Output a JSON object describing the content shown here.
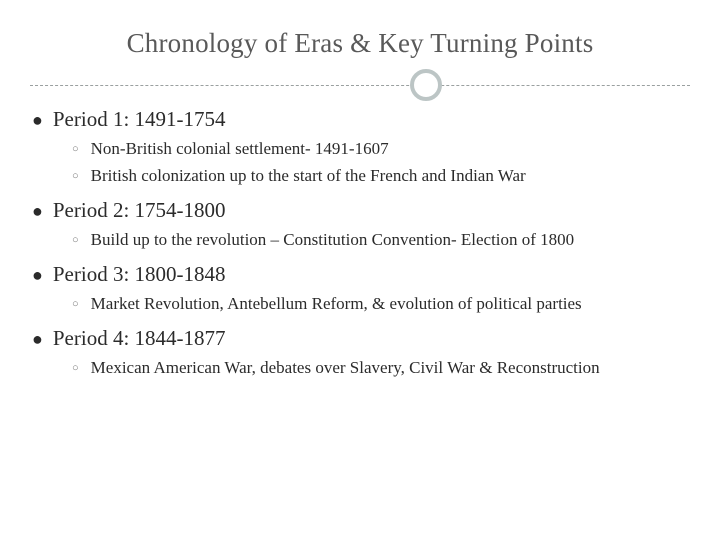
{
  "slide": {
    "title": "Chronology of Eras & Key Turning Points",
    "ring_color": "#bcc5c5",
    "dash_color": "#9aa0a0",
    "title_color": "#595959",
    "text_color": "#2b2b2b",
    "background": "#ffffff",
    "bullet_main": "●",
    "bullet_sub": "○",
    "periods": [
      {
        "label": "Period 1: 1491-1754",
        "items": [
          "Non-British colonial settlement- 1491-1607",
          "British colonization up to the start of the French and Indian War"
        ]
      },
      {
        "label": "Period 2: 1754-1800",
        "items": [
          "Build up to the revolution – Constitution Convention- Election of 1800"
        ]
      },
      {
        "label": "Period 3: 1800-1848",
        "items": [
          "Market Revolution, Antebellum Reform, & evolution of political parties"
        ]
      },
      {
        "label": "Period 4: 1844-1877",
        "items": [
          "Mexican American War, debates over Slavery, Civil War & Reconstruction"
        ]
      }
    ]
  }
}
